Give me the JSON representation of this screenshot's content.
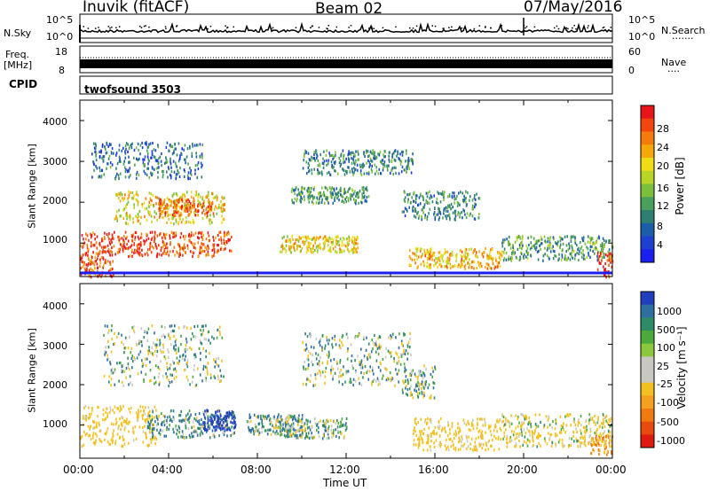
{
  "header": {
    "title": "Inuvik (fitACF)",
    "beam": "Beam 02",
    "date": "07/May/2016"
  },
  "strip_nsky": {
    "left_label": "N.Sky",
    "left_ticks": [
      "10^5",
      "10^0"
    ],
    "right_ticks": [
      "10^5",
      "10^0"
    ],
    "right_label": "N.Search",
    "right_dots": "·······"
  },
  "strip_freq": {
    "left_label_1": "Freq.",
    "left_label_2": "[MHz]",
    "left_ticks": [
      "18",
      "8"
    ],
    "right_ticks": [
      "60",
      "0"
    ],
    "right_label": "Nave",
    "right_dots": "····"
  },
  "cpid": {
    "label": "CPID",
    "value": "twofsound 3503"
  },
  "colorbars": {
    "power": {
      "label": "Power [dB]",
      "ticks": [
        "28",
        "24",
        "20",
        "16",
        "12",
        "8",
        "4"
      ],
      "colors": [
        "#e8161a",
        "#f2460e",
        "#f57b0c",
        "#f5a80a",
        "#f0dc14",
        "#b8d426",
        "#7cbf3b",
        "#4a9f5a",
        "#2f7e74",
        "#1b5ea7",
        "#1d3fd2",
        "#1a1ff0"
      ]
    },
    "velocity": {
      "label": "Velocity [m s⁻¹]",
      "ticks": [
        "1000",
        "500",
        "100",
        "25",
        "-25",
        "-100",
        "-500",
        "-1000"
      ],
      "colors": [
        "#1f3fbf",
        "#2f6fa0",
        "#2f8a68",
        "#4caa3c",
        "#8cc83c",
        "#c8c8c0",
        "#c8c8c0",
        "#f2c020",
        "#f5a020",
        "#f07a10",
        "#e84a10",
        "#e01a10"
      ]
    }
  },
  "chart_data": [
    {
      "type": "heatmap",
      "name": "Power panel",
      "ylabel": "Slant Range [km]",
      "yticks": [
        "1000",
        "2000",
        "3000",
        "4000"
      ],
      "ylim": [
        180,
        4500
      ],
      "xlim": [
        0,
        24
      ],
      "blobs": [
        {
          "x": [
            0.0,
            6.8
          ],
          "y": [
            700,
            1300
          ],
          "v": 28
        },
        {
          "x": [
            0.0,
            1.5
          ],
          "y": [
            200,
            700
          ],
          "v": 28
        },
        {
          "x": [
            1.5,
            6.5
          ],
          "y": [
            1500,
            2300
          ],
          "v": 20
        },
        {
          "x": [
            3.5,
            6.0
          ],
          "y": [
            1700,
            2100
          ],
          "v": 26
        },
        {
          "x": [
            0.5,
            5.5
          ],
          "y": [
            2600,
            3500
          ],
          "v": 8
        },
        {
          "x": [
            9.0,
            12.5
          ],
          "y": [
            800,
            1200
          ],
          "v": 20
        },
        {
          "x": [
            9.5,
            13.0
          ],
          "y": [
            2000,
            2400
          ],
          "v": 12
        },
        {
          "x": [
            10.0,
            15.0
          ],
          "y": [
            2700,
            3300
          ],
          "v": 10
        },
        {
          "x": [
            14.5,
            18.0
          ],
          "y": [
            1600,
            2300
          ],
          "v": 10
        },
        {
          "x": [
            14.8,
            19.0
          ],
          "y": [
            400,
            900
          ],
          "v": 22
        },
        {
          "x": [
            19.0,
            24.0
          ],
          "y": [
            600,
            1200
          ],
          "v": 12
        },
        {
          "x": [
            23.3,
            24.0
          ],
          "y": [
            200,
            800
          ],
          "v": 28
        }
      ]
    },
    {
      "type": "heatmap",
      "name": "Velocity panel",
      "ylabel": "Slant Range [km]",
      "yticks": [
        "1000",
        "2000",
        "3000",
        "4000"
      ],
      "ylim": [
        180,
        4500
      ],
      "xlim": [
        0,
        24
      ],
      "xlabel": "Time UT",
      "xticks": [
        "00:00",
        "04:00",
        "08:00",
        "12:00",
        "16:00",
        "20:00",
        "00:00"
      ],
      "blobs": [
        {
          "x": [
            0.0,
            3.5
          ],
          "y": [
            500,
            1500
          ],
          "v": -250
        },
        {
          "x": [
            3.0,
            7.0
          ],
          "y": [
            700,
            1400
          ],
          "v": 60
        },
        {
          "x": [
            5.5,
            7.0
          ],
          "y": [
            900,
            1400
          ],
          "v": 800
        },
        {
          "x": [
            1.0,
            6.5
          ],
          "y": [
            2000,
            3500
          ],
          "v": 0
        },
        {
          "x": [
            7.5,
            10.0
          ],
          "y": [
            800,
            1300
          ],
          "v": 60
        },
        {
          "x": [
            9.0,
            12.0
          ],
          "y": [
            700,
            1200
          ],
          "v": 0
        },
        {
          "x": [
            10.0,
            15.0
          ],
          "y": [
            2000,
            3300
          ],
          "v": 0
        },
        {
          "x": [
            14.5,
            16.0
          ],
          "y": [
            1700,
            2500
          ],
          "v": 0
        },
        {
          "x": [
            15.0,
            19.0
          ],
          "y": [
            400,
            1200
          ],
          "v": -250
        },
        {
          "x": [
            19.0,
            24.0
          ],
          "y": [
            500,
            1300
          ],
          "v": -150
        },
        {
          "x": [
            23.0,
            24.0
          ],
          "y": [
            300,
            800
          ],
          "v": -500
        }
      ]
    }
  ]
}
